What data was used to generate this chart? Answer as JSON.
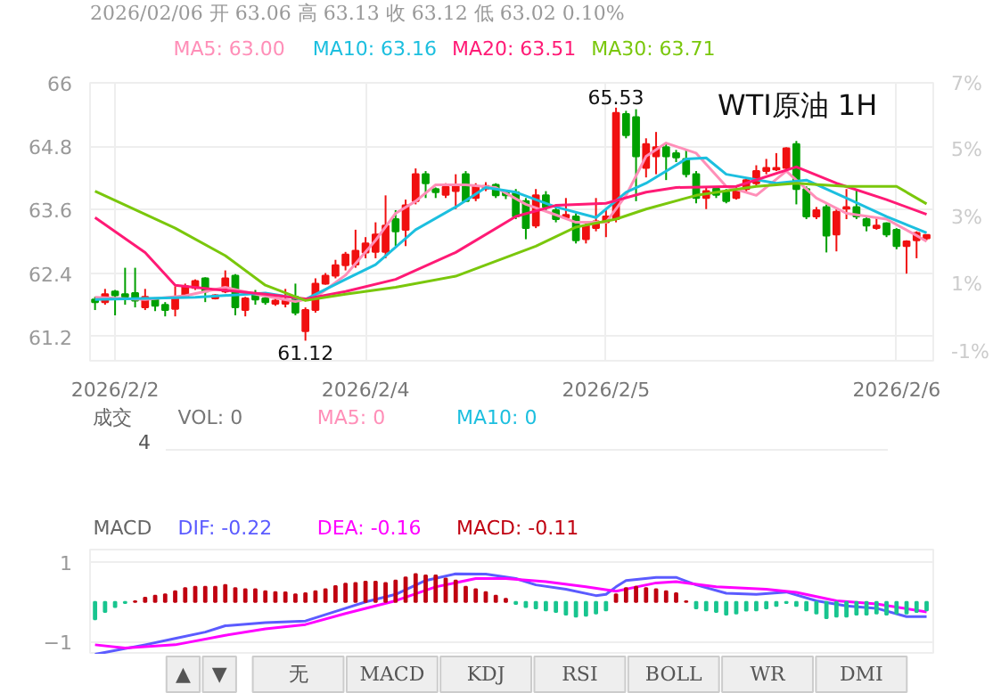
{
  "chart_data": [
    {
      "type": "candlestick",
      "title": "WTI原油 1H",
      "annotations": [
        "2026/02/06 开 63.06 高 63.13 收 63.12 低 63.02 0.10%",
        {
          "text": "65.53",
          "x": "2026-02-05T01:00",
          "y": 65.53
        },
        {
          "text": "61.12",
          "x": "2026-02-03T18:00",
          "y": 61.12
        }
      ],
      "x": [
        "2026-02-02T21:00",
        "2026-02-02T22:00",
        "2026-02-02T23:00",
        "2026-02-03T00:00",
        "2026-02-03T01:00",
        "2026-02-03T02:00",
        "2026-02-03T03:00",
        "2026-02-03T04:00",
        "2026-02-03T05:00",
        "2026-02-03T06:00",
        "2026-02-03T07:00",
        "2026-02-03T08:00",
        "2026-02-03T09:00",
        "2026-02-03T10:00",
        "2026-02-03T11:00",
        "2026-02-03T12:00",
        "2026-02-03T13:00",
        "2026-02-03T14:00",
        "2026-02-03T15:00",
        "2026-02-03T16:00",
        "2026-02-03T17:00",
        "2026-02-03T18:00",
        "2026-02-03T19:00",
        "2026-02-03T20:00",
        "2026-02-03T21:00",
        "2026-02-03T22:00",
        "2026-02-03T23:00",
        "2026-02-04T00:00",
        "2026-02-04T01:00",
        "2026-02-04T02:00",
        "2026-02-04T03:00",
        "2026-02-04T04:00",
        "2026-02-04T05:00",
        "2026-02-04T06:00",
        "2026-02-04T07:00",
        "2026-02-04T08:00",
        "2026-02-04T09:00",
        "2026-02-04T10:00",
        "2026-02-04T11:00",
        "2026-02-04T12:00",
        "2026-02-04T13:00",
        "2026-02-04T14:00",
        "2026-02-04T15:00",
        "2026-02-04T16:00",
        "2026-02-04T17:00",
        "2026-02-04T18:00",
        "2026-02-04T19:00",
        "2026-02-04T20:00",
        "2026-02-04T21:00",
        "2026-02-04T22:00",
        "2026-02-04T23:00",
        "2026-02-05T00:00",
        "2026-02-05T01:00",
        "2026-02-05T02:00",
        "2026-02-05T03:00",
        "2026-02-05T04:00",
        "2026-02-05T05:00",
        "2026-02-05T06:00",
        "2026-02-05T07:00",
        "2026-02-05T08:00",
        "2026-02-05T09:00",
        "2026-02-05T10:00",
        "2026-02-05T11:00",
        "2026-02-05T12:00",
        "2026-02-05T13:00",
        "2026-02-05T14:00",
        "2026-02-05T15:00",
        "2026-02-05T16:00",
        "2026-02-05T17:00",
        "2026-02-05T18:00",
        "2026-02-05T19:00",
        "2026-02-05T20:00",
        "2026-02-05T21:00",
        "2026-02-05T22:00",
        "2026-02-05T23:00",
        "2026-02-06T00:00",
        "2026-02-06T01:00",
        "2026-02-06T02:00",
        "2026-02-06T03:00",
        "2026-02-06T04:00",
        "2026-02-06T05:00",
        "2026-02-06T06:00",
        "2026-02-06T07:00",
        "2026-02-06T08:00"
      ],
      "ohlc": [
        [
          61.9,
          61.95,
          61.7,
          61.85
        ],
        [
          61.85,
          62.1,
          61.8,
          62.0
        ],
        [
          62.05,
          62.08,
          61.6,
          61.98
        ],
        [
          62.0,
          62.5,
          61.8,
          61.95
        ],
        [
          62.02,
          62.5,
          61.75,
          61.88
        ],
        [
          61.75,
          62.1,
          61.7,
          61.95
        ],
        [
          61.9,
          61.92,
          61.68,
          61.78
        ],
        [
          61.8,
          61.85,
          61.58,
          61.7
        ],
        [
          61.72,
          62.15,
          61.58,
          61.95
        ],
        [
          61.95,
          62.2,
          61.92,
          62.15
        ],
        [
          62.12,
          62.28,
          62.08,
          62.25
        ],
        [
          62.3,
          62.32,
          61.85,
          62.05
        ],
        [
          61.92,
          62.0,
          61.9,
          61.98
        ],
        [
          62.05,
          62.45,
          62.02,
          62.3
        ],
        [
          62.35,
          62.38,
          61.6,
          61.75
        ],
        [
          61.7,
          61.95,
          61.58,
          61.92
        ],
        [
          62.0,
          62.08,
          61.8,
          61.9
        ],
        [
          61.92,
          61.95,
          61.8,
          61.85
        ],
        [
          61.82,
          61.95,
          61.78,
          61.88
        ],
        [
          61.82,
          62.1,
          61.75,
          61.88
        ],
        [
          61.95,
          62.2,
          61.6,
          61.65
        ],
        [
          61.3,
          61.75,
          61.12,
          61.7
        ],
        [
          61.7,
          62.3,
          61.65,
          62.2
        ],
        [
          62.2,
          62.4,
          62.18,
          62.35
        ],
        [
          62.35,
          62.65,
          62.3,
          62.55
        ],
        [
          62.55,
          62.8,
          62.45,
          62.75
        ],
        [
          62.56,
          63.22,
          62.5,
          62.82
        ],
        [
          62.79,
          63.08,
          62.68,
          62.96
        ],
        [
          62.8,
          63.36,
          62.68,
          63.13
        ],
        [
          62.8,
          63.87,
          62.68,
          63.3
        ],
        [
          63.42,
          63.59,
          62.91,
          63.19
        ],
        [
          63.22,
          63.79,
          62.91,
          63.68
        ],
        [
          63.76,
          64.38,
          63.7,
          64.27
        ],
        [
          64.27,
          64.33,
          63.82,
          64.1
        ],
        [
          63.99,
          64.02,
          63.82,
          63.93
        ],
        [
          63.88,
          64.1,
          63.82,
          64.03
        ],
        [
          63.95,
          64.27,
          63.61,
          64.06
        ],
        [
          64.27,
          64.33,
          63.76,
          63.76
        ],
        [
          63.82,
          64.1,
          63.76,
          64.04
        ],
        [
          64.0,
          64.12,
          63.95,
          64.05
        ],
        [
          64.07,
          64.1,
          63.82,
          63.87
        ],
        [
          63.93,
          63.96,
          63.8,
          63.87
        ],
        [
          63.93,
          63.99,
          63.42,
          63.47
        ],
        [
          63.76,
          63.82,
          63.04,
          63.25
        ],
        [
          63.3,
          63.99,
          63.25,
          63.87
        ],
        [
          63.87,
          63.95,
          63.59,
          63.65
        ],
        [
          63.59,
          63.7,
          63.36,
          63.42
        ],
        [
          63.45,
          63.82,
          63.42,
          63.5
        ],
        [
          63.47,
          63.53,
          62.96,
          63.02
        ],
        [
          63.04,
          63.36,
          62.96,
          63.3
        ],
        [
          63.25,
          63.82,
          63.19,
          63.38
        ],
        [
          63.36,
          63.59,
          63.08,
          63.47
        ],
        [
          63.42,
          65.53,
          63.36,
          65.43
        ],
        [
          65.41,
          65.47,
          64.95,
          65.01
        ],
        [
          65.35,
          65.5,
          63.76,
          64.61
        ],
        [
          64.39,
          64.95,
          64.21,
          64.84
        ],
        [
          64.61,
          65.07,
          64.27,
          64.78
        ],
        [
          64.78,
          64.84,
          64.16,
          64.61
        ],
        [
          64.67,
          64.73,
          64.5,
          64.59
        ],
        [
          64.56,
          64.73,
          64.21,
          64.27
        ],
        [
          64.27,
          64.33,
          63.72,
          63.82
        ],
        [
          63.82,
          64.04,
          63.61,
          63.95
        ],
        [
          64.0,
          64.04,
          63.82,
          63.88
        ],
        [
          63.93,
          63.99,
          63.72,
          63.76
        ],
        [
          63.82,
          64.04,
          63.79,
          63.95
        ],
        [
          63.99,
          64.21,
          63.93,
          64.16
        ],
        [
          64.1,
          64.44,
          64.04,
          64.33
        ],
        [
          64.33,
          64.56,
          64.27,
          64.39
        ],
        [
          64.36,
          64.67,
          64.33,
          64.39
        ],
        [
          64.39,
          64.78,
          64.33,
          64.76
        ],
        [
          64.84,
          64.9,
          63.7,
          63.99
        ],
        [
          63.99,
          64.04,
          63.42,
          63.47
        ],
        [
          63.47,
          63.65,
          63.42,
          63.59
        ],
        [
          63.65,
          63.7,
          62.79,
          63.11
        ],
        [
          63.13,
          63.61,
          62.81,
          63.56
        ],
        [
          63.62,
          63.99,
          63.42,
          63.65
        ],
        [
          63.65,
          63.99,
          63.42,
          63.47
        ],
        [
          63.42,
          63.47,
          63.19,
          63.3
        ],
        [
          63.25,
          63.47,
          63.22,
          63.3
        ],
        [
          63.34,
          63.36,
          63.08,
          63.13
        ],
        [
          63.22,
          63.25,
          62.85,
          62.91
        ],
        [
          62.91,
          63.02,
          62.39,
          63.0
        ],
        [
          63.02,
          63.19,
          62.68,
          63.16
        ],
        [
          63.06,
          63.13,
          63.02,
          63.12
        ]
      ],
      "colors": [
        "#00a000",
        "#f01010",
        "#00a000",
        "#00a000",
        "#00a000",
        "#f01010",
        "#00a000",
        "#00a000",
        "#f01010",
        "#f01010",
        "#f01010",
        "#00a000",
        "#f01010",
        "#f01010",
        "#00a000",
        "#f01010",
        "#00a000",
        "#00a000",
        "#f01010",
        "#f01010",
        "#00a000",
        "#f01010",
        "#f01010",
        "#f01010",
        "#f01010",
        "#f01010",
        "#f01010",
        "#f01010",
        "#f01010",
        "#f01010",
        "#00a000",
        "#f01010",
        "#f01010",
        "#00a000",
        "#00a000",
        "#f01010",
        "#f01010",
        "#00a000",
        "#f01010",
        "#f01010",
        "#00a000",
        "#00a000",
        "#00a000",
        "#00a000",
        "#f01010",
        "#00a000",
        "#00a000",
        "#f01010",
        "#00a000",
        "#f01010",
        "#f01010",
        "#f01010",
        "#f01010",
        "#00a000",
        "#00a000",
        "#f01010",
        "#f01010",
        "#00a000",
        "#00a000",
        "#00a000",
        "#00a000",
        "#f01010",
        "#00a000",
        "#00a000",
        "#f01010",
        "#f01010",
        "#f01010",
        "#f01010",
        "#f01010",
        "#f01010",
        "#00a000",
        "#00a000",
        "#f01010",
        "#00a000",
        "#f01010",
        "#f01010",
        "#00a000",
        "#00a000",
        "#f01010",
        "#00a000",
        "#00a000",
        "#f01010",
        "#f01010",
        "#f01010"
      ],
      "series": [
        {
          "name": "MA5: 63.00",
          "type": "line",
          "color": "#ff8fb8",
          "x": [
            "2026-02-02T21:00",
            "2026-02-03T02:00",
            "2026-02-03T06:00",
            "2026-02-03T10:00",
            "2026-02-03T13:00",
            "2026-02-03T17:00",
            "2026-02-03T19:00",
            "2026-02-03T22:00",
            "2026-02-04T01:00",
            "2026-02-04T03:00",
            "2026-02-04T05:00",
            "2026-02-04T07:00",
            "2026-02-04T10:00",
            "2026-02-04T13:00",
            "2026-02-04T16:00",
            "2026-02-04T19:00",
            "2026-02-04T21:00",
            "2026-02-05T00:00",
            "2026-02-05T02:00",
            "2026-02-05T04:00",
            "2026-02-05T06:00",
            "2026-02-05T09:00",
            "2026-02-05T12:00",
            "2026-02-05T15:00",
            "2026-02-05T18:00",
            "2026-02-05T21:00",
            "2026-02-06T00:00",
            "2026-02-06T04:00",
            "2026-02-06T07:00",
            "2026-02-06T08:00"
          ],
          "values": [
            61.94,
            61.9,
            61.97,
            62.13,
            62.0,
            61.86,
            61.94,
            62.36,
            63.02,
            63.53,
            63.76,
            64.07,
            64.07,
            64.02,
            63.7,
            63.5,
            63.36,
            63.36,
            63.87,
            64.61,
            64.86,
            64.67,
            64.04,
            63.87,
            64.33,
            63.82,
            63.53,
            63.42,
            63.11,
            63.0
          ]
        },
        {
          "name": "MA10: 63.16",
          "type": "line",
          "color": "#1cbfdf",
          "x": [
            "2026-02-02T21:00",
            "2026-02-03T07:00",
            "2026-02-03T14:00",
            "2026-02-03T18:00",
            "2026-02-03T22:00",
            "2026-02-04T01:00",
            "2026-02-04T05:00",
            "2026-02-04T09:00",
            "2026-02-04T12:00",
            "2026-02-04T15:00",
            "2026-02-04T19:00",
            "2026-02-04T23:00",
            "2026-02-05T02:00",
            "2026-02-05T04:00",
            "2026-02-05T08:00",
            "2026-02-05T10:00",
            "2026-02-05T12:00",
            "2026-02-05T17:00",
            "2026-02-05T20:00",
            "2026-02-06T00:00",
            "2026-02-06T04:00",
            "2026-02-06T08:00"
          ],
          "values": [
            61.9,
            61.94,
            62.02,
            61.9,
            62.28,
            62.56,
            63.22,
            63.65,
            64.02,
            63.93,
            63.65,
            63.45,
            63.93,
            64.1,
            64.56,
            64.58,
            64.27,
            64.1,
            64.16,
            63.82,
            63.47,
            63.16
          ]
        },
        {
          "name": "MA20: 63.51",
          "type": "line",
          "color": "#ff1a75",
          "x": [
            "2026-02-02T21:00",
            "2026-02-03T02:00",
            "2026-02-03T05:00",
            "2026-02-03T09:00",
            "2026-02-03T14:00",
            "2026-02-03T18:00",
            "2026-02-03T22:00",
            "2026-02-04T03:00",
            "2026-02-04T09:00",
            "2026-02-04T15:00",
            "2026-02-04T19:00",
            "2026-02-05T00:00",
            "2026-02-05T04:00",
            "2026-02-05T07:00",
            "2026-02-05T13:00",
            "2026-02-05T19:00",
            "2026-02-05T23:00",
            "2026-02-06T04:00",
            "2026-02-06T08:00"
          ],
          "values": [
            63.45,
            62.79,
            62.17,
            62.09,
            62.0,
            61.91,
            62.05,
            62.28,
            62.79,
            63.47,
            63.68,
            63.72,
            63.93,
            64.02,
            64.04,
            64.41,
            64.1,
            63.79,
            63.51
          ]
        },
        {
          "name": "MA30: 63.71",
          "type": "line",
          "color": "#7ac70c",
          "x": [
            "2026-02-02T21:00",
            "2026-02-03T05:00",
            "2026-02-03T10:00",
            "2026-02-03T14:00",
            "2026-02-03T18:00",
            "2026-02-03T22:00",
            "2026-02-04T03:00",
            "2026-02-04T09:00",
            "2026-02-04T17:00",
            "2026-02-04T21:00",
            "2026-02-05T01:00",
            "2026-02-05T04:00",
            "2026-02-05T09:00",
            "2026-02-05T15:00",
            "2026-02-05T19:00",
            "2026-02-06T00:00",
            "2026-02-06T05:00",
            "2026-02-06T08:00"
          ],
          "values": [
            63.95,
            63.25,
            62.73,
            62.17,
            61.88,
            62.0,
            62.13,
            62.34,
            62.91,
            63.27,
            63.42,
            63.61,
            63.87,
            64.04,
            64.1,
            64.04,
            64.04,
            63.71
          ]
        }
      ],
      "xlim": [
        "2026-02-02T20:30",
        "2026-02-06T08:40"
      ],
      "xticks": [
        {
          "value": "2026-02-02T23:00",
          "label": "2026/2/2"
        },
        {
          "value": "2026-02-04T00:00",
          "label": "2026/2/4"
        },
        {
          "value": "2026-02-05T00:00",
          "label": "2026/2/5"
        },
        {
          "value": "2026-02-06T05:00",
          "label": "2026/2/6"
        }
      ],
      "ylim": [
        60.74,
        66
      ],
      "yticks": [
        61.2,
        62.4,
        63.6,
        64.8,
        66
      ],
      "y2lim": [
        -1.27,
        7
      ],
      "y2ticks": [
        {
          "value": 7,
          "label": "7%"
        },
        {
          "value": 5,
          "label": "5%"
        },
        {
          "value": 3,
          "label": "3%"
        },
        {
          "value": 1,
          "label": "1%"
        },
        {
          "value": -1,
          "label": "-1%"
        }
      ],
      "grid": true,
      "legend": "top"
    },
    {
      "type": "other",
      "ylabel": "成交",
      "annotations": [
        "VOL: 0",
        "MA5: 0",
        "MA10: 0",
        "4"
      ]
    },
    {
      "type": "line",
      "ylabel": "MACD",
      "annotations": [
        "▲",
        "▼",
        "无",
        "MACD",
        "KDJ",
        "RSI",
        "BOLL",
        "WR",
        "DMI"
      ],
      "x": [
        "2026-02-02T21:00",
        "2026-02-02T22:00",
        "2026-02-02T23:00",
        "2026-02-03T00:00",
        "2026-02-03T01:00",
        "2026-02-03T02:00",
        "2026-02-03T03:00",
        "2026-02-03T04:00",
        "2026-02-03T05:00",
        "2026-02-03T06:00",
        "2026-02-03T07:00",
        "2026-02-03T08:00",
        "2026-02-03T09:00",
        "2026-02-03T10:00",
        "2026-02-03T11:00",
        "2026-02-03T12:00",
        "2026-02-03T13:00",
        "2026-02-03T14:00",
        "2026-02-03T15:00",
        "2026-02-03T16:00",
        "2026-02-03T17:00",
        "2026-02-03T18:00",
        "2026-02-03T19:00",
        "2026-02-03T20:00",
        "2026-02-03T21:00",
        "2026-02-03T22:00",
        "2026-02-03T23:00",
        "2026-02-04T00:00",
        "2026-02-04T01:00",
        "2026-02-04T02:00",
        "2026-02-04T03:00",
        "2026-02-04T04:00",
        "2026-02-04T05:00",
        "2026-02-04T06:00",
        "2026-02-04T07:00",
        "2026-02-04T08:00",
        "2026-02-04T09:00",
        "2026-02-04T10:00",
        "2026-02-04T11:00",
        "2026-02-04T12:00",
        "2026-02-04T13:00",
        "2026-02-04T14:00",
        "2026-02-04T15:00",
        "2026-02-04T16:00",
        "2026-02-04T17:00",
        "2026-02-04T18:00",
        "2026-02-04T19:00",
        "2026-02-04T20:00",
        "2026-02-04T21:00",
        "2026-02-04T22:00",
        "2026-02-04T23:00",
        "2026-02-05T00:00",
        "2026-02-05T01:00",
        "2026-02-05T02:00",
        "2026-02-05T03:00",
        "2026-02-05T04:00",
        "2026-02-05T05:00",
        "2026-02-05T06:00",
        "2026-02-05T07:00",
        "2026-02-05T08:00",
        "2026-02-05T09:00",
        "2026-02-05T10:00",
        "2026-02-05T11:00",
        "2026-02-05T12:00",
        "2026-02-05T13:00",
        "2026-02-05T14:00",
        "2026-02-05T15:00",
        "2026-02-05T16:00",
        "2026-02-05T17:00",
        "2026-02-05T18:00",
        "2026-02-05T19:00",
        "2026-02-05T20:00",
        "2026-02-05T21:00",
        "2026-02-05T22:00",
        "2026-02-05T23:00",
        "2026-02-06T00:00",
        "2026-02-06T01:00",
        "2026-02-06T02:00",
        "2026-02-06T03:00",
        "2026-02-06T04:00",
        "2026-02-06T05:00",
        "2026-02-06T06:00",
        "2026-02-06T07:00",
        "2026-02-06T08:00"
      ],
      "series": [
        {
          "name": "DIF: -0.22",
          "color": "#5b5bff",
          "x": [
            "2026-02-02T21:00",
            "2026-02-03T02:00",
            "2026-02-03T05:00",
            "2026-02-03T08:00",
            "2026-02-03T10:00",
            "2026-02-03T14:00",
            "2026-02-03T18:00",
            "2026-02-03T22:00",
            "2026-02-04T00:00",
            "2026-02-04T03:00",
            "2026-02-04T06:00",
            "2026-02-04T09:00",
            "2026-02-04T12:00",
            "2026-02-04T15:00",
            "2026-02-04T17:00",
            "2026-02-04T20:00",
            "2026-02-04T23:00",
            "2026-02-05T00:00",
            "2026-02-05T01:00",
            "2026-02-05T02:00",
            "2026-02-05T05:00",
            "2026-02-05T07:00",
            "2026-02-05T09:00",
            "2026-02-05T12:00",
            "2026-02-05T15:00",
            "2026-02-05T18:00",
            "2026-02-05T21:00",
            "2026-02-06T00:00",
            "2026-02-06T03:00",
            "2026-02-06T06:00",
            "2026-02-06T08:00"
          ],
          "values": [
            -1.32,
            -1.08,
            -0.92,
            -0.76,
            -0.6,
            -0.52,
            -0.48,
            -0.16,
            0,
            0.19,
            0.54,
            0.71,
            0.7,
            0.59,
            0.43,
            0.32,
            0.16,
            0.19,
            0.38,
            0.54,
            0.62,
            0.62,
            0.43,
            0.22,
            0.19,
            0.25,
            0.03,
            -0.1,
            -0.16,
            -0.37,
            -0.37
          ]
        },
        {
          "name": "DEA: -0.16",
          "color": "#ff00ff",
          "x": [
            "2026-02-02T21:00",
            "2026-02-03T00:00",
            "2026-02-03T05:00",
            "2026-02-03T10:00",
            "2026-02-03T14:00",
            "2026-02-03T18:00",
            "2026-02-03T22:00",
            "2026-02-04T03:00",
            "2026-02-04T07:00",
            "2026-02-04T11:00",
            "2026-02-04T14:00",
            "2026-02-04T18:00",
            "2026-02-04T22:00",
            "2026-02-05T01:00",
            "2026-02-05T05:00",
            "2026-02-05T07:00",
            "2026-02-05T11:00",
            "2026-02-05T16:00",
            "2026-02-05T19:00",
            "2026-02-05T23:00",
            "2026-02-06T03:00",
            "2026-02-06T08:00"
          ],
          "values": [
            -1.08,
            -1.16,
            -1.08,
            -0.84,
            -0.68,
            -0.57,
            -0.29,
            0.03,
            0.38,
            0.59,
            0.59,
            0.51,
            0.38,
            0.27,
            0.48,
            0.51,
            0.38,
            0.32,
            0.24,
            0.03,
            -0.05,
            -0.25
          ]
        },
        {
          "name": "MACD: -0.11",
          "type": "bar",
          "color": "#c00010",
          "values": [
            -0.44,
            -0.25,
            -0.13,
            -0.03,
            0.02,
            0.11,
            0.16,
            0.19,
            0.27,
            0.35,
            0.38,
            0.38,
            0.38,
            0.43,
            0.35,
            0.32,
            0.32,
            0.27,
            0.25,
            0.24,
            0.19,
            0.22,
            0.27,
            0.32,
            0.4,
            0.46,
            0.48,
            0.51,
            0.51,
            0.48,
            0.54,
            0.62,
            0.7,
            0.67,
            0.67,
            0.59,
            0.54,
            0.38,
            0.32,
            0.25,
            0.16,
            0.08,
            -0.05,
            -0.13,
            -0.16,
            -0.21,
            -0.25,
            -0.32,
            -0.37,
            -0.35,
            -0.29,
            -0.21,
            0.19,
            0.35,
            0.38,
            0.35,
            0.32,
            0.27,
            0.22,
            0.02,
            -0.16,
            -0.21,
            -0.25,
            -0.32,
            -0.29,
            -0.22,
            -0.21,
            -0.16,
            -0.1,
            -0.03,
            -0.1,
            -0.21,
            -0.29,
            -0.41,
            -0.37,
            -0.37,
            -0.32,
            -0.32,
            -0.29,
            -0.32,
            -0.29,
            -0.29,
            -0.25,
            -0.21
          ],
          "colors": [
            "#19c58f",
            "#19c58f",
            "#19c58f",
            "#19c58f",
            "#c00010",
            "#c00010",
            "#c00010",
            "#c00010",
            "#c00010",
            "#c00010",
            "#c00010",
            "#c00010",
            "#c00010",
            "#c00010",
            "#c00010",
            "#c00010",
            "#c00010",
            "#c00010",
            "#c00010",
            "#c00010",
            "#c00010",
            "#c00010",
            "#c00010",
            "#c00010",
            "#c00010",
            "#c00010",
            "#c00010",
            "#c00010",
            "#c00010",
            "#c00010",
            "#c00010",
            "#c00010",
            "#c00010",
            "#c00010",
            "#c00010",
            "#c00010",
            "#c00010",
            "#c00010",
            "#c00010",
            "#c00010",
            "#c00010",
            "#c00010",
            "#19c58f",
            "#19c58f",
            "#19c58f",
            "#19c58f",
            "#19c58f",
            "#19c58f",
            "#19c58f",
            "#19c58f",
            "#19c58f",
            "#19c58f",
            "#c00010",
            "#c00010",
            "#c00010",
            "#c00010",
            "#c00010",
            "#c00010",
            "#c00010",
            "#c00010",
            "#19c58f",
            "#19c58f",
            "#19c58f",
            "#19c58f",
            "#19c58f",
            "#19c58f",
            "#19c58f",
            "#19c58f",
            "#19c58f",
            "#19c58f",
            "#19c58f",
            "#19c58f",
            "#19c58f",
            "#19c58f",
            "#19c58f",
            "#19c58f",
            "#19c58f",
            "#19c58f",
            "#19c58f",
            "#19c58f",
            "#19c58f",
            "#19c58f",
            "#19c58f",
            "#19c58f"
          ]
        }
      ],
      "xlim": [
        "2026-02-02T20:30",
        "2026-02-06T08:40"
      ],
      "ylim": [
        -1.33,
        1.32
      ],
      "yticks": [
        1,
        -1
      ],
      "tick_labels": "y",
      "grid": "y",
      "legend": "top"
    }
  ]
}
